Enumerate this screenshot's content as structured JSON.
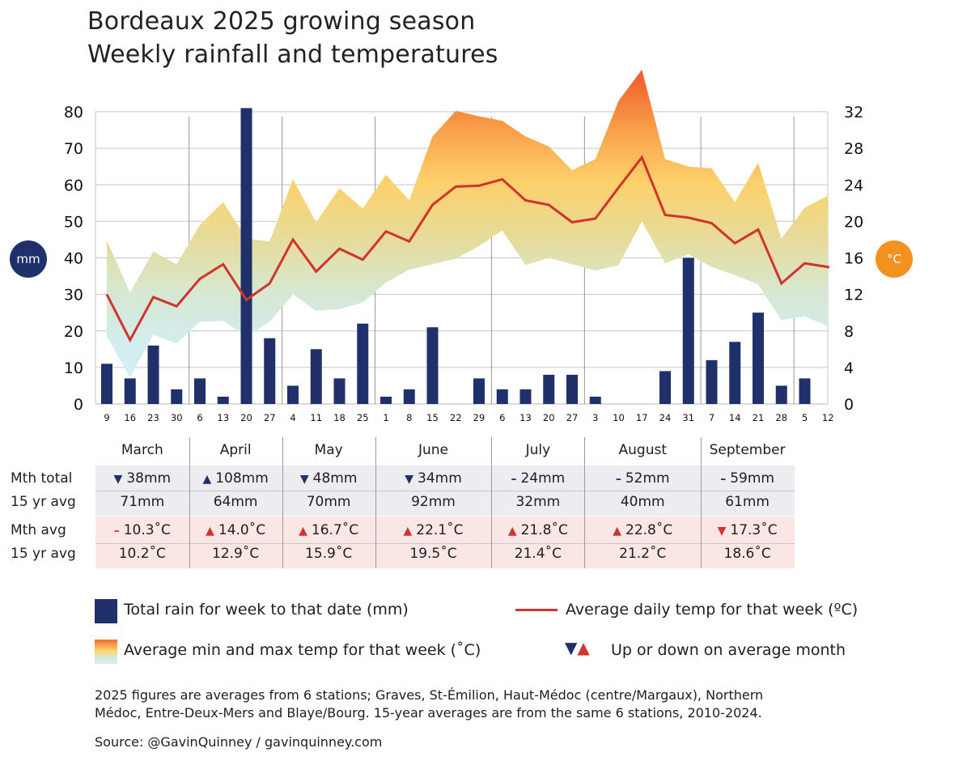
{
  "title_line1": "Bordeaux 2025 growing season",
  "title_line2": "Weekly rainfall and temperatures",
  "left_axis_badge": "mm",
  "right_axis_badge": "°C",
  "colors": {
    "rain": "#20306a",
    "avg_temp_line": "#d0342c",
    "badge_mm": "#20306a",
    "badge_c": "#f3921e",
    "band_hot": "#f26a2e",
    "band_warm": "#fcd26a",
    "band_cool": "#d5f0f7",
    "rain_table_bg": "#ececf1",
    "temp_table_bg": "#f9e6e5"
  },
  "chart_data": {
    "type": "bar",
    "title": "Bordeaux 2025 growing season — Weekly rainfall and temperatures",
    "xlabel": "",
    "ylabel_left": "mm",
    "ylabel_right": "°C",
    "ylim_left": [
      0,
      80
    ],
    "ylim_right": [
      0,
      32
    ],
    "yticks_left": [
      0,
      10,
      20,
      30,
      40,
      50,
      60,
      70,
      80
    ],
    "yticks_right": [
      0,
      4,
      8,
      12,
      16,
      20,
      24,
      28,
      32
    ],
    "grid": true,
    "x": [
      "9",
      "16",
      "23",
      "30",
      "6",
      "13",
      "20",
      "27",
      "4",
      "11",
      "18",
      "25",
      "1",
      "8",
      "15",
      "22",
      "29",
      "6",
      "13",
      "20",
      "27",
      "3",
      "10",
      "17",
      "24",
      "31",
      "7",
      "14",
      "21",
      "28",
      "5",
      "12"
    ],
    "months": [
      {
        "name": "March",
        "weeks": 4
      },
      {
        "name": "April",
        "weeks": 4
      },
      {
        "name": "May",
        "weeks": 4
      },
      {
        "name": "June",
        "weeks": 5
      },
      {
        "name": "July",
        "weeks": 4
      },
      {
        "name": "August",
        "weeks": 5
      },
      {
        "name": "September",
        "weeks": 4
      }
    ],
    "series": [
      {
        "name": "Total rain for week to that date (mm)",
        "type": "bar",
        "axis": "left",
        "values": [
          11,
          7,
          16,
          4,
          7,
          2,
          81,
          18,
          5,
          15,
          7,
          22,
          2,
          4,
          21,
          0,
          7,
          4,
          4,
          8,
          8,
          2,
          0,
          0,
          9,
          40,
          12,
          17,
          25,
          5,
          7,
          0
        ]
      },
      {
        "name": "Average daily temp for that week (°C)",
        "type": "line",
        "axis": "right",
        "values": [
          12.0,
          7.0,
          11.7,
          10.7,
          13.7,
          15.3,
          11.4,
          13.2,
          18.0,
          14.5,
          17.0,
          15.8,
          18.9,
          17.8,
          21.8,
          23.8,
          23.9,
          24.6,
          22.3,
          21.8,
          19.9,
          20.3,
          23.7,
          27.0,
          20.7,
          20.4,
          19.8,
          17.6,
          19.1,
          13.2,
          15.4,
          15.0
        ]
      },
      {
        "name": "Average max temp for that week (°C)",
        "type": "area-upper",
        "axis": "right",
        "values": [
          17.9,
          12.2,
          16.7,
          15.3,
          19.6,
          22.1,
          18.1,
          17.8,
          24.6,
          19.9,
          23.6,
          21.4,
          25.1,
          22.3,
          29.3,
          32.1,
          31.5,
          31.0,
          29.3,
          28.2,
          25.6,
          26.8,
          33.2,
          36.6,
          26.8,
          26.0,
          25.8,
          22.1,
          26.4,
          18.1,
          21.5,
          22.8
        ]
      },
      {
        "name": "Average min temp for that week (°C)",
        "type": "area-lower",
        "axis": "right",
        "values": [
          7.4,
          2.9,
          7.6,
          6.6,
          9.0,
          9.1,
          7.4,
          9.0,
          12.0,
          10.2,
          10.4,
          11.1,
          13.3,
          14.7,
          15.3,
          15.9,
          17.3,
          19.0,
          15.2,
          16.0,
          15.3,
          14.6,
          15.2,
          20.0,
          15.4,
          16.4,
          15.0,
          14.1,
          13.1,
          9.2,
          9.6,
          8.5
        ]
      }
    ],
    "legend": "bottom"
  },
  "table": {
    "row_labels": [
      "Mth total",
      "15 yr avg",
      "Mth avg",
      "15 yr avg"
    ],
    "months": [
      "March",
      "April",
      "May",
      "June",
      "July",
      "August",
      "September"
    ],
    "rain_total": [
      {
        "mark": "down",
        "value": "38mm"
      },
      {
        "mark": "up",
        "value": "108mm"
      },
      {
        "mark": "down",
        "value": "48mm"
      },
      {
        "mark": "down",
        "value": "34mm"
      },
      {
        "mark": "same",
        "value": "24mm"
      },
      {
        "mark": "same",
        "value": "52mm"
      },
      {
        "mark": "same",
        "value": "59mm"
      }
    ],
    "rain_avg": [
      "71mm",
      "64mm",
      "70mm",
      "92mm",
      "32mm",
      "40mm",
      "61mm"
    ],
    "temp_avg": [
      {
        "mark": "same",
        "value": "10.3˚C"
      },
      {
        "mark": "up",
        "value": "14.0˚C"
      },
      {
        "mark": "up",
        "value": "16.7˚C"
      },
      {
        "mark": "up",
        "value": "22.1˚C"
      },
      {
        "mark": "up",
        "value": "21.8˚C"
      },
      {
        "mark": "up",
        "value": "22.8˚C"
      },
      {
        "mark": "down",
        "value": "17.3˚C"
      }
    ],
    "temp_15yr": [
      "10.2˚C",
      "12.9˚C",
      "15.9˚C",
      "19.5˚C",
      "21.4˚C",
      "21.2˚C",
      "18.6˚C"
    ]
  },
  "legend": {
    "rain": "Total rain for week to that date (mm)",
    "avg_line": "Average daily temp for that week (ºC)",
    "band": "Average min and max temp for that week (˚C)",
    "arrows": "Up or down on average month"
  },
  "footnote_line1": "2025 figures are averages from 6 stations; Graves, St-Émilion, Haut-Médoc (centre/Margaux), Northern",
  "footnote_line2": "Médoc, Entre-Deux-Mers and Blaye/Bourg. 15-year averages are from the same 6 stations, 2010-2024.",
  "source": "Source: @GavinQuinney / gavinquinney.com"
}
